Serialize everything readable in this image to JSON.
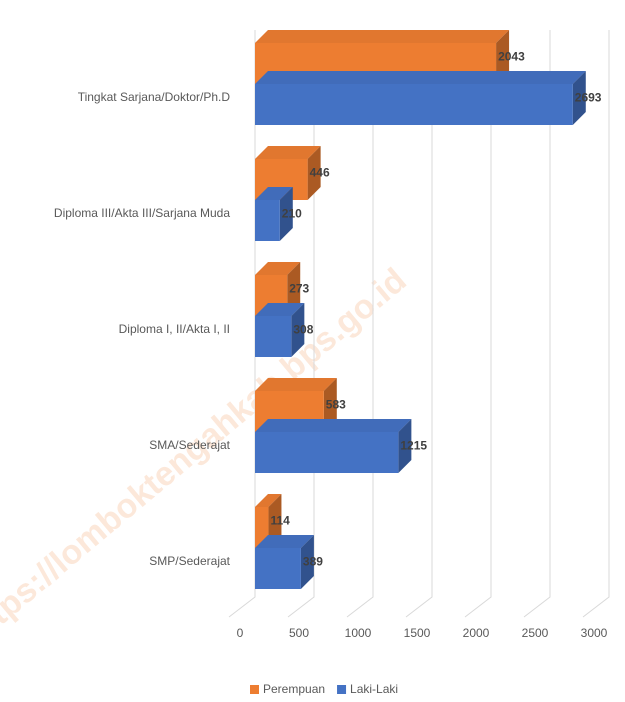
{
  "chart_data": {
    "type": "bar3d-horizontal",
    "categories": [
      "Tingkat Sarjana/Doktor/Ph.D",
      "Diploma III/Akta III/Sarjana Muda",
      "Diploma I, II/Akta I, II",
      "SMA/Sederajat",
      "SMP/Sederajat"
    ],
    "series": [
      {
        "name": "Perempuan",
        "color": "#ed7d31",
        "values": [
          2043,
          446,
          273,
          583,
          114
        ]
      },
      {
        "name": "Laki-Laki",
        "color": "#4472c4",
        "values": [
          2693,
          210,
          308,
          1215,
          389
        ]
      }
    ],
    "xlim": [
      0,
      3000
    ],
    "xticks": [
      0,
      500,
      1000,
      1500,
      2000,
      2500,
      3000
    ],
    "grid": true,
    "legend": "bottom",
    "watermark": "https://lomboktengahkab.bps.go.id"
  }
}
